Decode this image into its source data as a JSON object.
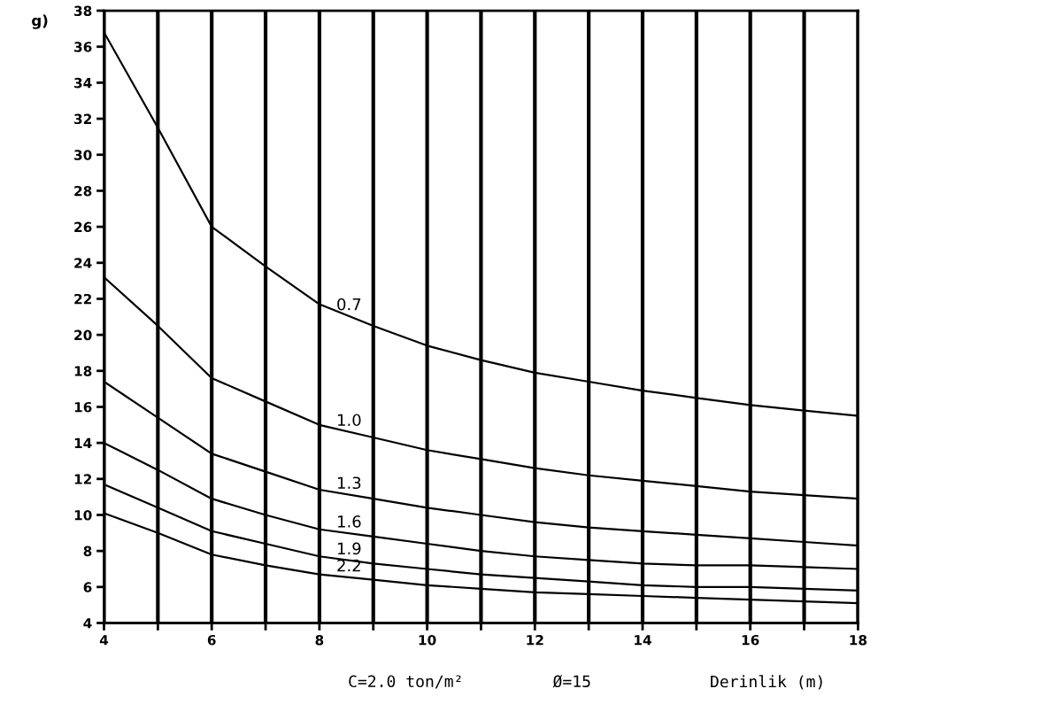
{
  "chart_data": {
    "type": "line",
    "ylabel": "g)",
    "xlabel": "Derinlik (m)",
    "annotations": [
      "C=2.0 ton/m²",
      "Ø=15"
    ],
    "x": [
      4,
      5,
      6,
      7,
      8,
      9,
      10,
      11,
      12,
      13,
      14,
      15,
      16,
      17,
      18
    ],
    "series": [
      {
        "name": "0.7",
        "color": "#000000",
        "values": [
          36.8,
          31.5,
          26.0,
          23.8,
          21.7,
          20.5,
          19.4,
          18.6,
          17.9,
          17.4,
          16.9,
          16.5,
          16.1,
          15.8,
          15.5
        ]
      },
      {
        "name": "1.0",
        "color": "#000000",
        "values": [
          23.2,
          20.5,
          17.6,
          16.3,
          15.0,
          14.3,
          13.6,
          13.1,
          12.6,
          12.2,
          11.9,
          11.6,
          11.3,
          11.1,
          10.9
        ]
      },
      {
        "name": "1.3",
        "color": "#000000",
        "values": [
          17.4,
          15.4,
          13.4,
          12.4,
          11.4,
          10.9,
          10.4,
          10.0,
          9.6,
          9.3,
          9.1,
          8.9,
          8.7,
          8.5,
          8.3
        ]
      },
      {
        "name": "1.6",
        "color": "#000000",
        "values": [
          14.0,
          12.5,
          10.9,
          10.0,
          9.2,
          8.8,
          8.4,
          8.0,
          7.7,
          7.5,
          7.3,
          7.2,
          7.2,
          7.1,
          7.0
        ]
      },
      {
        "name": "1.9",
        "color": "#000000",
        "values": [
          11.7,
          10.4,
          9.1,
          8.4,
          7.7,
          7.3,
          7.0,
          6.7,
          6.5,
          6.3,
          6.1,
          6.0,
          6.0,
          5.9,
          5.8
        ]
      },
      {
        "name": "2.2",
        "color": "#000000",
        "values": [
          10.1,
          9.0,
          7.8,
          7.2,
          6.7,
          6.4,
          6.1,
          5.9,
          5.7,
          5.6,
          5.5,
          5.4,
          5.3,
          5.2,
          5.1
        ]
      }
    ],
    "xlim": [
      4,
      18
    ],
    "ylim": [
      4,
      38
    ],
    "xticks": [
      4,
      {
        "value": 5,
        "label": null
      },
      6,
      {
        "value": 7,
        "label": null
      },
      8,
      {
        "value": 9,
        "label": null
      },
      10,
      {
        "value": 11,
        "label": null
      },
      12,
      {
        "value": 13,
        "label": null
      },
      14,
      {
        "value": 15,
        "label": null
      },
      16,
      {
        "value": 17,
        "label": null
      },
      18
    ],
    "yticks": [
      4,
      6,
      8,
      10,
      12,
      14,
      16,
      18,
      20,
      22,
      24,
      26,
      28,
      30,
      32,
      34,
      36,
      38
    ],
    "grid": "x",
    "legend": false,
    "marker": "none",
    "line_style": "solid"
  }
}
